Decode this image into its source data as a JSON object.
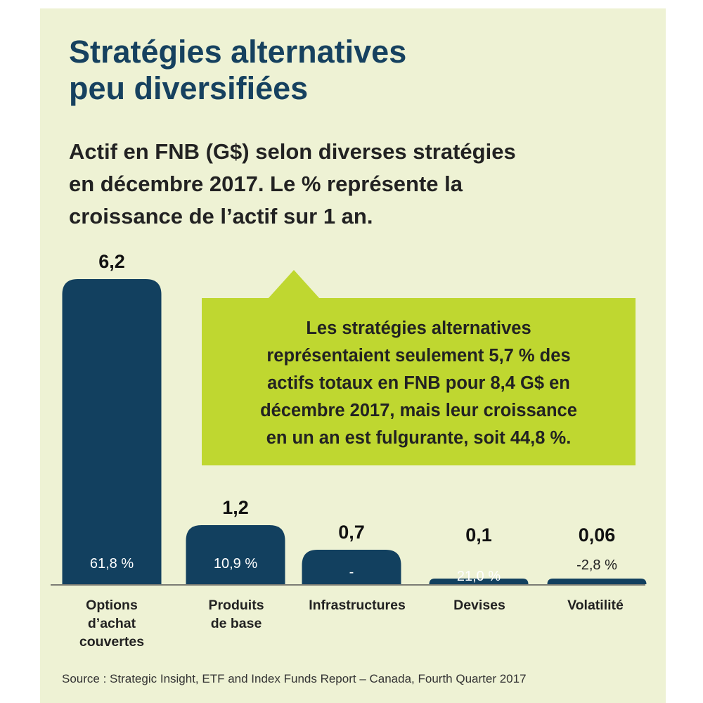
{
  "title_line1": "Stratégies alternatives",
  "title_line2": "peu diversifiées",
  "subtitle_lines": [
    "Actif en FNB (G$) selon diverses stratégies",
    "en décembre 2017. Le % représente la",
    "croissance de l’actif sur 1 an."
  ],
  "callout_lines": [
    "Les stratégies alternatives",
    "représentaient seulement 5,7 % des",
    "actifs totaux en FNB pour 8,4 G$ en",
    "décembre 2017, mais leur croissance",
    "en un an est fulgurante, soit 44,8 %."
  ],
  "source": "Source : Strategic Insight, ETF and Index Funds Report – Canada, Fourth Quarter 2017",
  "colors": {
    "background": "#eef2d4",
    "bar": "#12405f",
    "title": "#16415f",
    "callout": "#bfd730"
  },
  "chart_data": {
    "type": "bar",
    "title": "Actif en FNB (G$) selon diverses stratégies en décembre 2017. Le % représente la croissance de l’actif sur 1 an.",
    "categories": [
      [
        "Options",
        "d’achat",
        "couvertes"
      ],
      [
        "Produits",
        "de base"
      ],
      [
        "Infrastructures"
      ],
      [
        "Devises"
      ],
      [
        "Volatilité"
      ]
    ],
    "values": [
      6.2,
      1.2,
      0.7,
      0.1,
      0.06
    ],
    "value_labels": [
      "6,2",
      "1,2",
      "0,7",
      "0,1",
      "0,06"
    ],
    "growth_labels": [
      "61,8 %",
      "10,9 %",
      "-",
      "21,0 %",
      "-2,8 %"
    ],
    "ylim": [
      0,
      6.2
    ],
    "grid": false,
    "legend": "none"
  }
}
